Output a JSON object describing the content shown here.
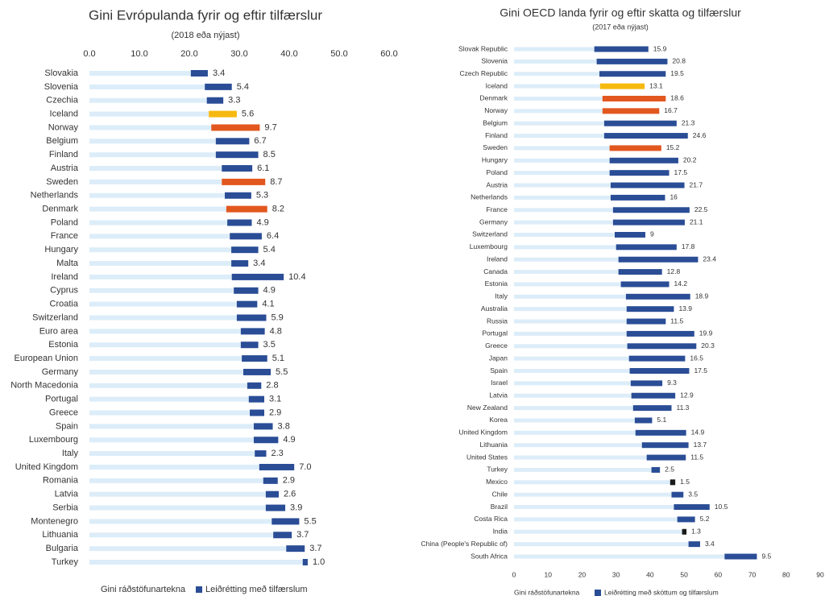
{
  "chart_data": [
    {
      "type": "bar",
      "orientation": "horizontal",
      "stacked": true,
      "title": "Gini Evrópulanda fyrir og eftir tilfærslur",
      "subtitle": "(2018 eða nýjast)",
      "xaxis_position": "top",
      "categories": [
        "Slovakia",
        "Slovenia",
        "Czechia",
        "Iceland",
        "Norway",
        "Belgium",
        "Finland",
        "Austria",
        "Sweden",
        "Netherlands",
        "Denmark",
        "Poland",
        "France",
        "Hungary",
        "Malta",
        "Ireland",
        "Cyprus",
        "Croatia",
        "Switzerland",
        "Euro area",
        "Estonia",
        "European Union",
        "Germany",
        "North Macedonia",
        "Portugal",
        "Greece",
        "Spain",
        "Luxembourg",
        "Italy",
        "United Kingdom",
        "Romania",
        "Latvia",
        "Serbia",
        "Montenegro",
        "Lithuania",
        "Bulgaria",
        "Turkey"
      ],
      "series": [
        {
          "name": "Gini ráðstöfunartekna",
          "color": "#dcedf9",
          "values": [
            20.3,
            23.1,
            23.5,
            23.9,
            24.4,
            25.3,
            25.3,
            26.5,
            26.5,
            27.1,
            27.4,
            27.6,
            28.1,
            28.4,
            28.4,
            28.5,
            28.9,
            29.5,
            29.5,
            30.3,
            30.3,
            30.5,
            30.8,
            31.6,
            31.9,
            32.1,
            32.9,
            32.9,
            33.1,
            34.0,
            34.8,
            35.3,
            35.3,
            36.5,
            36.8,
            39.4,
            42.7
          ]
        },
        {
          "name": "Leiðrétting með tilfærslum",
          "color": "#2a4d96",
          "values": [
            3.4,
            5.4,
            3.3,
            5.6,
            9.7,
            6.7,
            8.5,
            6.1,
            8.7,
            5.3,
            8.2,
            4.9,
            6.4,
            5.4,
            3.4,
            10.4,
            4.9,
            4.1,
            5.9,
            4.8,
            3.5,
            5.1,
            5.5,
            2.8,
            3.1,
            2.9,
            3.8,
            4.9,
            2.3,
            7.0,
            2.9,
            2.6,
            3.9,
            5.5,
            3.7,
            3.7,
            1.0
          ],
          "value_labels": [
            "3.4",
            "5.4",
            "3.3",
            "5.6",
            "9.7",
            "6.7",
            "8.5",
            "6.1",
            "8.7",
            "5.3",
            "8.2",
            "4.9",
            "6.4",
            "5.4",
            "3.4",
            "10.4",
            "4.9",
            "4.1",
            "5.9",
            "4.8",
            "3.5",
            "5.1",
            "5.5",
            "2.8",
            "3.1",
            "2.9",
            "3.8",
            "4.9",
            "2.3",
            "7.0",
            "2.9",
            "2.6",
            "3.9",
            "5.5",
            "3.7",
            "3.7",
            "1.0"
          ],
          "colors": [
            "#2a4d96",
            "#2a4d96",
            "#2a4d96",
            "#f6b90f",
            "#e2571e",
            "#2a4d96",
            "#2a4d96",
            "#2a4d96",
            "#e2571e",
            "#2a4d96",
            "#e2571e",
            "#2a4d96",
            "#2a4d96",
            "#2a4d96",
            "#2a4d96",
            "#2a4d96",
            "#2a4d96",
            "#2a4d96",
            "#2a4d96",
            "#2a4d96",
            "#2a4d96",
            "#2a4d96",
            "#2a4d96",
            "#2a4d96",
            "#2a4d96",
            "#2a4d96",
            "#2a4d96",
            "#2a4d96",
            "#2a4d96",
            "#2a4d96",
            "#2a4d96",
            "#2a4d96",
            "#2a4d96",
            "#2a4d96",
            "#2a4d96",
            "#2a4d96",
            "#2a4d96"
          ]
        }
      ],
      "xlim": [
        0,
        60
      ],
      "xticks": [
        {
          "value": 0,
          "label": "0.0"
        },
        {
          "value": 10,
          "label": "10.0"
        },
        {
          "value": 20,
          "label": "20.0"
        },
        {
          "value": 30,
          "label": "30.0"
        },
        {
          "value": 40,
          "label": "40.0"
        },
        {
          "value": 50,
          "label": "50.0"
        },
        {
          "value": 60,
          "label": "60.0"
        }
      ]
    },
    {
      "type": "bar",
      "orientation": "horizontal",
      "stacked": true,
      "title": "Gini OECD landa fyrir og eftir skatta og tilfærslur",
      "subtitle": "(2017 eða nýjast)",
      "xaxis_position": "bottom",
      "categories": [
        "Slovak Republic",
        "Slovenia",
        "Czech Republic",
        "Iceland",
        "Denmark",
        "Norway",
        "Belgium",
        "Finland",
        "Sweden",
        "Hungary",
        "Poland",
        "Austria",
        "Netherlands",
        "France",
        "Germany",
        "Switzerland",
        "Luxembourg",
        "Ireland",
        "Canada",
        "Estonia",
        "Italy",
        "Australia",
        "Russia",
        "Portugal",
        "Greece",
        "Japan",
        "Spain",
        "Israel",
        "Latvia",
        "New Zealand",
        "Korea",
        "United Kingdom",
        "Lithuania",
        "United States",
        "Turkey",
        "Mexico",
        "Chile",
        "Brazil",
        "Costa Rica",
        "India",
        "China (People's Republic of)",
        "South Africa"
      ],
      "series": [
        {
          "name": "Gini ráðstöfunartekna",
          "color": "#dcedf9",
          "values": [
            23.6,
            24.3,
            25.1,
            25.3,
            26.0,
            26.0,
            26.5,
            26.5,
            28.1,
            28.1,
            28.1,
            28.4,
            28.4,
            29.1,
            29.1,
            29.6,
            30.0,
            30.7,
            30.7,
            31.4,
            32.9,
            33.1,
            33.1,
            33.1,
            33.3,
            33.8,
            34.0,
            34.3,
            34.5,
            35.0,
            35.5,
            35.7,
            37.6,
            39.0,
            40.4,
            45.9,
            46.3,
            47.0,
            48.0,
            49.4,
            51.3,
            61.9
          ]
        },
        {
          "name": "Leiðrétting með sköttum og tilfærslum",
          "color": "#2a4d96",
          "values": [
            15.9,
            20.8,
            19.5,
            13.1,
            18.6,
            16.7,
            21.3,
            24.6,
            15.2,
            20.2,
            17.5,
            21.7,
            16,
            22.5,
            21.1,
            9,
            17.8,
            23.4,
            12.8,
            14.2,
            18.9,
            13.9,
            11.5,
            19.9,
            20.3,
            16.5,
            17.5,
            9.3,
            12.9,
            11.3,
            5.1,
            14.9,
            13.7,
            11.5,
            2.5,
            1.5,
            3.5,
            10.5,
            5.2,
            1.3,
            3.4,
            9.5
          ],
          "colors": [
            "#2a4d96",
            "#2a4d96",
            "#2a4d96",
            "#f6b90f",
            "#e2571e",
            "#e2571e",
            "#2a4d96",
            "#2a4d96",
            "#e2571e",
            "#2a4d96",
            "#2a4d96",
            "#2a4d96",
            "#2a4d96",
            "#2a4d96",
            "#2a4d96",
            "#2a4d96",
            "#2a4d96",
            "#2a4d96",
            "#2a4d96",
            "#2a4d96",
            "#2a4d96",
            "#2a4d96",
            "#2a4d96",
            "#2a4d96",
            "#2a4d96",
            "#2a4d96",
            "#2a4d96",
            "#2a4d96",
            "#2a4d96",
            "#2a4d96",
            "#2a4d96",
            "#2a4d96",
            "#2a4d96",
            "#2a4d96",
            "#2a4d96",
            "#1a1a1a",
            "#2a4d96",
            "#2a4d96",
            "#2a4d96",
            "#1a1a1a",
            "#2a4d96",
            "#2a4d96"
          ]
        }
      ],
      "xlim": [
        0,
        90
      ],
      "xticks": [
        0,
        10,
        20,
        30,
        40,
        50,
        60,
        70,
        80,
        90
      ]
    }
  ]
}
